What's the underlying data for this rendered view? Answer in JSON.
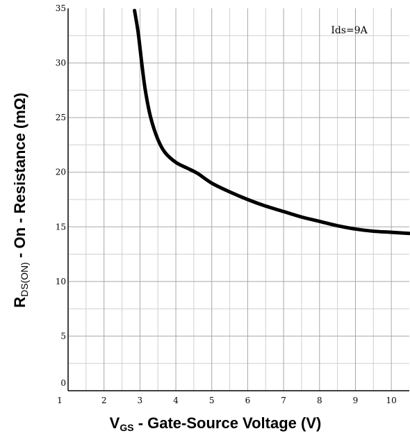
{
  "chart_data": {
    "type": "line",
    "xlabel": {
      "main": "V",
      "sub": "GS",
      "rest": " - Gate-Source Voltage (V)"
    },
    "ylabel": {
      "main": "R",
      "sub": "DS(ON)",
      "rest": " - On - Resistance (mΩ)"
    },
    "annotation": "Ids=9A",
    "xlim": [
      1,
      10.5
    ],
    "ylim": [
      0,
      35
    ],
    "x_ticks": [
      1,
      2,
      3,
      4,
      5,
      6,
      7,
      8,
      9,
      10
    ],
    "y_ticks": [
      0,
      5,
      10,
      15,
      20,
      25,
      30,
      35
    ],
    "grid": true,
    "x_minor_step": 0.5,
    "y_minor_step": 2.5,
    "series": [
      {
        "color": "#000000",
        "x": [
          2.85,
          2.95,
          3.05,
          3.15,
          3.3,
          3.5,
          3.7,
          4.0,
          4.3,
          4.6,
          5.0,
          5.5,
          6.0,
          6.5,
          7.0,
          7.5,
          8.0,
          8.5,
          9.0,
          9.5,
          10.0,
          10.5
        ],
        "y": [
          34.8,
          32.8,
          30.0,
          27.5,
          25.0,
          23.0,
          21.8,
          20.9,
          20.4,
          19.9,
          19.0,
          18.2,
          17.5,
          16.9,
          16.4,
          15.9,
          15.5,
          15.1,
          14.8,
          14.6,
          14.5,
          14.4
        ]
      }
    ]
  }
}
